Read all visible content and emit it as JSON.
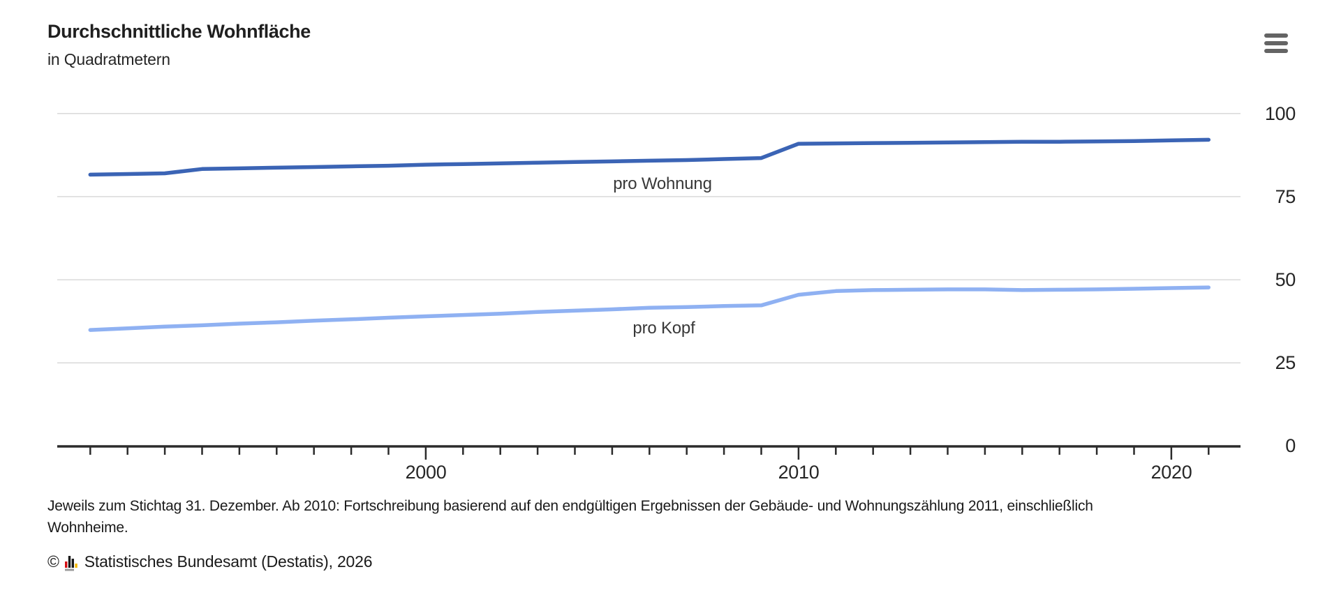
{
  "header": {
    "title": "Durchschnittliche Wohnfläche",
    "subtitle": "in Quadratmetern",
    "menu_icon": "hamburger-menu-icon"
  },
  "chart_data": {
    "type": "line",
    "title": "Durchschnittliche Wohnfläche",
    "subtitle": "in Quadratmetern",
    "unit": "Quadratmeter",
    "x": [
      1991,
      1992,
      1993,
      1994,
      1995,
      1996,
      1997,
      1998,
      1999,
      2000,
      2001,
      2002,
      2003,
      2004,
      2005,
      2006,
      2007,
      2008,
      2009,
      2010,
      2011,
      2012,
      2013,
      2014,
      2015,
      2016,
      2017,
      2018,
      2019,
      2020,
      2021
    ],
    "series": [
      {
        "name": "pro Wohnung",
        "color": "#3b64b5",
        "values": [
          81.6,
          81.8,
          82.0,
          83.3,
          83.5,
          83.7,
          83.9,
          84.1,
          84.3,
          84.6,
          84.8,
          85.0,
          85.2,
          85.4,
          85.6,
          85.8,
          86.0,
          86.3,
          86.6,
          90.9,
          91.0,
          91.1,
          91.2,
          91.3,
          91.4,
          91.5,
          91.5,
          91.6,
          91.7,
          91.9,
          92.1
        ]
      },
      {
        "name": "pro Kopf",
        "color": "#8fb1f2",
        "values": [
          34.9,
          35.4,
          35.9,
          36.3,
          36.8,
          37.2,
          37.7,
          38.1,
          38.6,
          39.0,
          39.4,
          39.8,
          40.3,
          40.7,
          41.1,
          41.6,
          41.8,
          42.1,
          42.3,
          45.5,
          46.6,
          46.9,
          47.0,
          47.1,
          47.1,
          46.9,
          47.0,
          47.1,
          47.3,
          47.5,
          47.7
        ]
      }
    ],
    "ylim": [
      0,
      100
    ],
    "yticks": [
      0,
      25,
      50,
      75,
      100
    ],
    "ytick_labels": [
      "100",
      "75",
      "50",
      "25",
      "0"
    ],
    "xticks_labeled": [
      2000,
      2010,
      2020
    ],
    "xtick_labels": [
      "2000",
      "2010",
      "2020"
    ],
    "grid": true,
    "legend_position": "inline-labels",
    "grid_color": "#d9d9d9",
    "axis_color": "#2b2b2b"
  },
  "footer": {
    "note_line1": "Jeweils zum Stichtag 31. Dezember. Ab 2010: Fortschreibung basierend auf den endgültigen Ergebnissen der Gebäude- und Wohnungszählung 2011, einschließlich",
    "note_line2": "Wohnheime.",
    "copyright_symbol": "©",
    "source": "Statistisches Bundesamt (Destatis), 2026",
    "logo_icon": "destatis-bar-chart-icon",
    "logo_colors": {
      "red": "#d40f14",
      "black": "#1a1a1a",
      "yellow": "#f5b800",
      "gray": "#9a9a9a"
    }
  }
}
